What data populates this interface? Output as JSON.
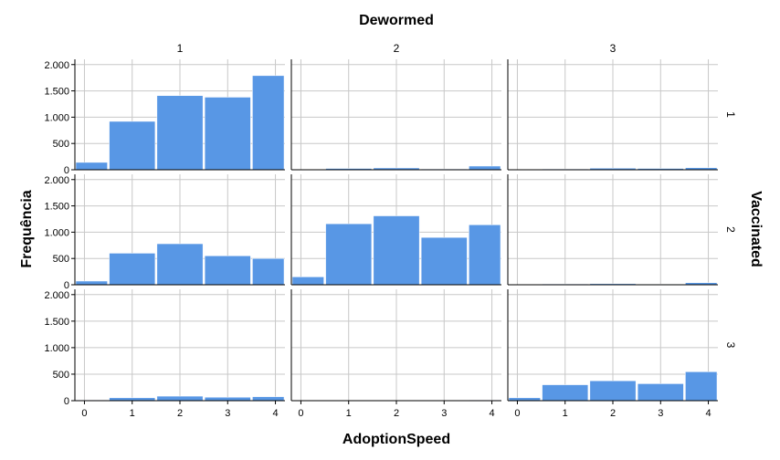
{
  "chart_data": {
    "type": "bar",
    "title": "",
    "col_facet_label": "Dewormed",
    "row_facet_label": "Vaccinated",
    "xlabel": "AdoptionSpeed",
    "ylabel": "Frequência",
    "col_levels": [
      "1",
      "2",
      "3"
    ],
    "row_levels": [
      "1",
      "2",
      "3"
    ],
    "categories": [
      0,
      1,
      2,
      3,
      4
    ],
    "x_tick_labels": [
      "0",
      "1",
      "2",
      "3",
      "4"
    ],
    "ylim": [
      0,
      2100
    ],
    "y_ticks": [
      0,
      500,
      1000,
      1500,
      2000
    ],
    "y_tick_labels": [
      "0",
      "500",
      "1.000",
      "1.500",
      "2.000"
    ],
    "grid": true,
    "bar_color": "#5897E5",
    "panels": [
      {
        "row": "1",
        "col": "1",
        "values": [
          140,
          920,
          1410,
          1380,
          1790
        ]
      },
      {
        "row": "1",
        "col": "2",
        "values": [
          5,
          25,
          35,
          15,
          70
        ]
      },
      {
        "row": "1",
        "col": "3",
        "values": [
          3,
          15,
          30,
          25,
          40
        ]
      },
      {
        "row": "2",
        "col": "1",
        "values": [
          70,
          600,
          780,
          550,
          500
        ]
      },
      {
        "row": "2",
        "col": "2",
        "values": [
          150,
          1160,
          1310,
          900,
          1140
        ]
      },
      {
        "row": "2",
        "col": "3",
        "values": [
          3,
          15,
          20,
          12,
          40
        ]
      },
      {
        "row": "3",
        "col": "1",
        "values": [
          10,
          55,
          85,
          65,
          75
        ]
      },
      {
        "row": "3",
        "col": "2",
        "values": [
          3,
          5,
          5,
          5,
          10
        ]
      },
      {
        "row": "3",
        "col": "3",
        "values": [
          55,
          300,
          375,
          320,
          545
        ]
      }
    ]
  }
}
